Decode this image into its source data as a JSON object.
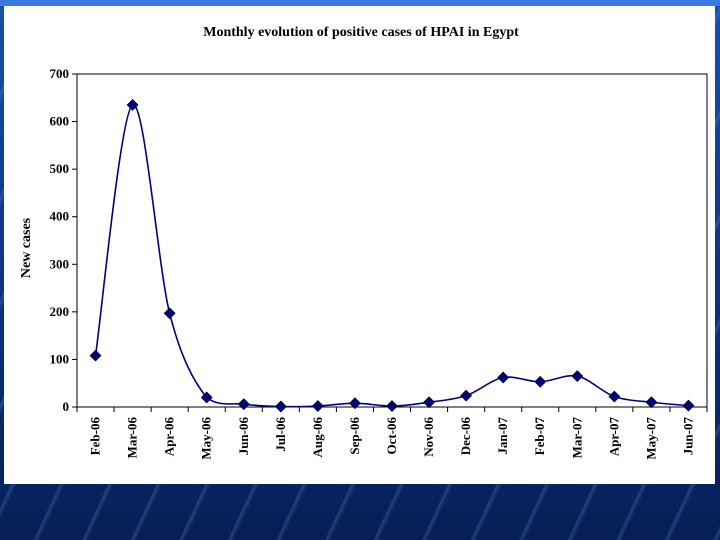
{
  "colors": {
    "background": "#0b2f7c",
    "panel": "#ffffff",
    "series": "#000080"
  },
  "chart_data": {
    "type": "line",
    "title": "Monthly evolution of positive cases of HPAI in Egypt",
    "xlabel": "",
    "ylabel": "New cases",
    "categories": [
      "Feb-06",
      "Mar-06",
      "Apr-06",
      "May-06",
      "Jun-06",
      "Jul-06",
      "Aug-06",
      "Sep-06",
      "Oct-06",
      "Nov-06",
      "Dec-06",
      "Jan-07",
      "Feb-07",
      "Mar-07",
      "Apr-07",
      "May-07",
      "Jun-07"
    ],
    "series": [
      {
        "values": [
          108,
          635,
          197,
          20,
          6,
          1,
          2,
          8,
          2,
          10,
          24,
          62,
          53,
          65,
          22,
          10,
          3
        ]
      }
    ],
    "yticks": [
      "0",
      "100",
      "200",
      "300",
      "400",
      "500",
      "600",
      "700"
    ],
    "ylim": [
      0,
      700
    ],
    "grid": false,
    "legend": "none",
    "marker": "diamond",
    "smooth": true
  }
}
